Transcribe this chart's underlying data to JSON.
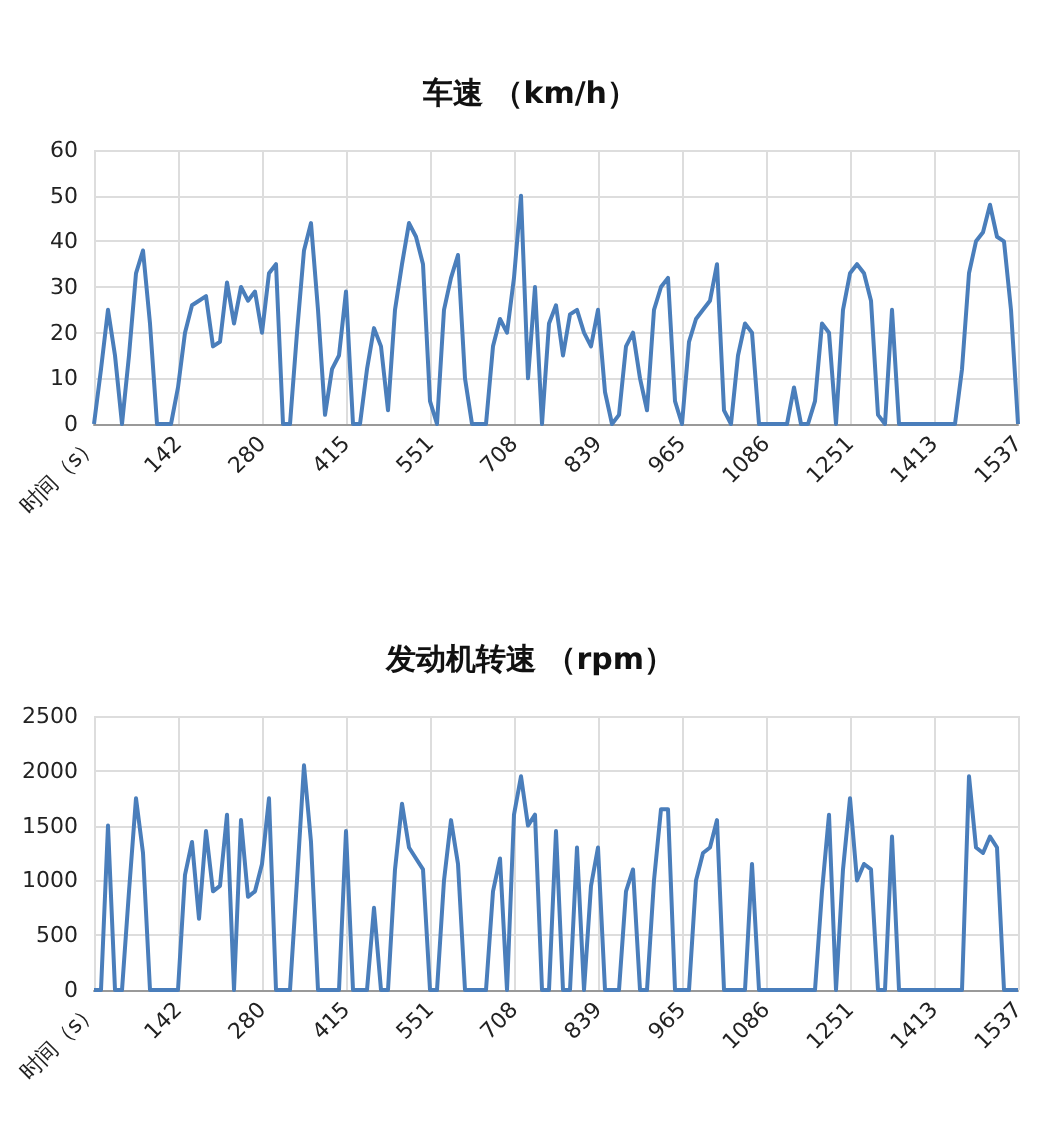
{
  "chart_data": [
    {
      "type": "line",
      "title": "车速 （km/h）",
      "categories": [
        "时间（s）",
        null,
        null,
        null,
        null,
        null,
        null,
        null,
        null,
        null,
        null,
        null,
        "142",
        null,
        null,
        null,
        null,
        null,
        null,
        null,
        null,
        null,
        null,
        null,
        "280",
        null,
        null,
        null,
        null,
        null,
        null,
        null,
        null,
        null,
        null,
        null,
        "415",
        null,
        null,
        null,
        null,
        null,
        null,
        null,
        null,
        null,
        null,
        null,
        "551",
        null,
        null,
        null,
        null,
        null,
        null,
        null,
        null,
        null,
        null,
        null,
        "708",
        null,
        null,
        null,
        null,
        null,
        null,
        null,
        null,
        null,
        null,
        null,
        "839",
        null,
        null,
        null,
        null,
        null,
        null,
        null,
        null,
        null,
        null,
        null,
        "965",
        null,
        null,
        null,
        null,
        null,
        null,
        null,
        null,
        null,
        null,
        null,
        "1086",
        null,
        null,
        null,
        null,
        null,
        null,
        null,
        null,
        null,
        null,
        null,
        "1251",
        null,
        null,
        null,
        null,
        null,
        null,
        null,
        null,
        null,
        null,
        null,
        "1413",
        null,
        null,
        null,
        null,
        null,
        null,
        null,
        null,
        null,
        null,
        null,
        "1537"
      ],
      "values": [
        0,
        12,
        25,
        15,
        0,
        15,
        33,
        38,
        22,
        0,
        0,
        0,
        8,
        20,
        26,
        27,
        28,
        17,
        18,
        31,
        22,
        30,
        27,
        29,
        20,
        33,
        35,
        0,
        0,
        20,
        38,
        44,
        25,
        2,
        12,
        15,
        29,
        0,
        0,
        12,
        21,
        17,
        3,
        25,
        35,
        44,
        41,
        35,
        5,
        0,
        25,
        32,
        37,
        10,
        0,
        0,
        0,
        17,
        23,
        20,
        32,
        50,
        10,
        30,
        0,
        22,
        26,
        15,
        24,
        25,
        20,
        17,
        25,
        7,
        0,
        2,
        17,
        20,
        10,
        3,
        25,
        30,
        32,
        5,
        0,
        18,
        23,
        25,
        27,
        35,
        3,
        0,
        15,
        22,
        20,
        0,
        0,
        0,
        0,
        0,
        8,
        0,
        0,
        5,
        22,
        20,
        0,
        25,
        33,
        35,
        33,
        27,
        2,
        0,
        25,
        0,
        0,
        0,
        0,
        0,
        0,
        0,
        0,
        0,
        12,
        33,
        40,
        42,
        48,
        41,
        40,
        25,
        0
      ],
      "color": "#4a7ebb",
      "ylim": [
        0,
        60
      ],
      "yticks": [
        0,
        10,
        20,
        30,
        40,
        50,
        60
      ],
      "grid": true,
      "marker": "none"
    },
    {
      "type": "line",
      "title": "发动机转速 （rpm）",
      "categories": [
        "时间（s）",
        null,
        null,
        null,
        null,
        null,
        null,
        null,
        null,
        null,
        null,
        null,
        "142",
        null,
        null,
        null,
        null,
        null,
        null,
        null,
        null,
        null,
        null,
        null,
        "280",
        null,
        null,
        null,
        null,
        null,
        null,
        null,
        null,
        null,
        null,
        null,
        "415",
        null,
        null,
        null,
        null,
        null,
        null,
        null,
        null,
        null,
        null,
        null,
        "551",
        null,
        null,
        null,
        null,
        null,
        null,
        null,
        null,
        null,
        null,
        null,
        "708",
        null,
        null,
        null,
        null,
        null,
        null,
        null,
        null,
        null,
        null,
        null,
        "839",
        null,
        null,
        null,
        null,
        null,
        null,
        null,
        null,
        null,
        null,
        null,
        "965",
        null,
        null,
        null,
        null,
        null,
        null,
        null,
        null,
        null,
        null,
        null,
        "1086",
        null,
        null,
        null,
        null,
        null,
        null,
        null,
        null,
        null,
        null,
        null,
        "1251",
        null,
        null,
        null,
        null,
        null,
        null,
        null,
        null,
        null,
        null,
        null,
        "1413",
        null,
        null,
        null,
        null,
        null,
        null,
        null,
        null,
        null,
        null,
        null,
        "1537"
      ],
      "values": [
        0,
        0,
        1500,
        0,
        0,
        900,
        1750,
        1250,
        0,
        0,
        0,
        0,
        0,
        1050,
        1350,
        650,
        1450,
        900,
        950,
        1600,
        0,
        1550,
        850,
        900,
        1150,
        1750,
        0,
        0,
        0,
        1000,
        2050,
        1350,
        0,
        0,
        0,
        0,
        1450,
        0,
        0,
        0,
        750,
        0,
        0,
        1100,
        1700,
        1300,
        1200,
        1100,
        0,
        0,
        1000,
        1550,
        1150,
        0,
        0,
        0,
        0,
        900,
        1200,
        0,
        1600,
        1950,
        1500,
        1600,
        0,
        0,
        1450,
        0,
        0,
        1300,
        0,
        950,
        1300,
        0,
        0,
        0,
        900,
        1100,
        0,
        0,
        1000,
        1650,
        1650,
        0,
        0,
        0,
        1000,
        1250,
        1300,
        1550,
        0,
        0,
        0,
        0,
        1150,
        0,
        0,
        0,
        0,
        0,
        0,
        0,
        0,
        0,
        900,
        1600,
        0,
        1100,
        1750,
        1000,
        1150,
        1100,
        0,
        0,
        1400,
        0,
        0,
        0,
        0,
        0,
        0,
        0,
        0,
        0,
        0,
        1950,
        1300,
        1250,
        1400,
        1300,
        0,
        0,
        0
      ],
      "color": "#4a7ebb",
      "ylim": [
        0,
        2500
      ],
      "yticks": [
        0,
        500,
        1000,
        1500,
        2000,
        2500
      ],
      "grid": true,
      "marker": "none"
    }
  ]
}
